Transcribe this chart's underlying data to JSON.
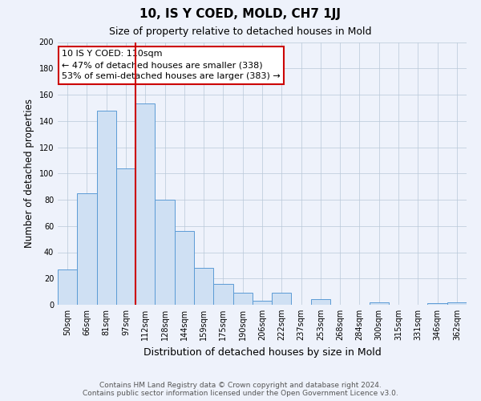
{
  "title": "10, IS Y COED, MOLD, CH7 1JJ",
  "subtitle": "Size of property relative to detached houses in Mold",
  "xlabel": "Distribution of detached houses by size in Mold",
  "ylabel": "Number of detached properties",
  "bar_labels": [
    "50sqm",
    "66sqm",
    "81sqm",
    "97sqm",
    "112sqm",
    "128sqm",
    "144sqm",
    "159sqm",
    "175sqm",
    "190sqm",
    "206sqm",
    "222sqm",
    "237sqm",
    "253sqm",
    "268sqm",
    "284sqm",
    "300sqm",
    "315sqm",
    "331sqm",
    "346sqm",
    "362sqm"
  ],
  "bar_values": [
    27,
    85,
    148,
    104,
    153,
    80,
    56,
    28,
    16,
    9,
    3,
    9,
    0,
    4,
    0,
    0,
    2,
    0,
    0,
    1,
    2
  ],
  "bar_color": "#cfe0f3",
  "bar_edgecolor": "#5b9bd5",
  "vline_color": "#cc0000",
  "vline_index": 4,
  "annotation_title": "10 IS Y COED: 110sqm",
  "annotation_line1": "← 47% of detached houses are smaller (338)",
  "annotation_line2": "53% of semi-detached houses are larger (383) →",
  "ylim": [
    0,
    200
  ],
  "yticks": [
    0,
    20,
    40,
    60,
    80,
    100,
    120,
    140,
    160,
    180,
    200
  ],
  "footer_line1": "Contains HM Land Registry data © Crown copyright and database right 2024.",
  "footer_line2": "Contains public sector information licensed under the Open Government Licence v3.0.",
  "bg_color": "#eef2fb",
  "plot_bg_color": "#eef2fb",
  "grid_color": "#b8c8d8",
  "title_fontsize": 11,
  "subtitle_fontsize": 9,
  "ylabel_fontsize": 8.5,
  "xlabel_fontsize": 9,
  "tick_fontsize": 7,
  "footer_fontsize": 6.5,
  "annot_fontsize": 8
}
